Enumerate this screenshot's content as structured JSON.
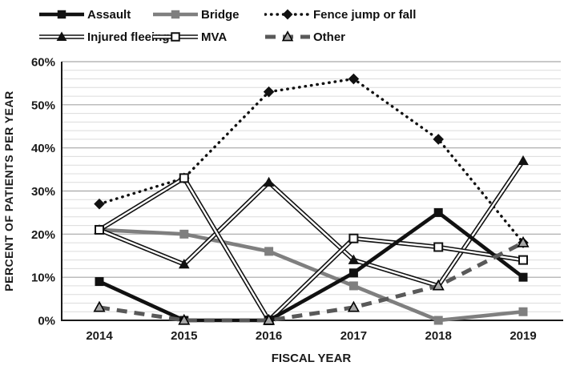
{
  "chart_data": {
    "type": "line",
    "title": "",
    "xlabel": "FISCAL YEAR",
    "ylabel": "PERCENT OF PATIENTS PER YEAR",
    "x": [
      "2014",
      "2015",
      "2016",
      "2017",
      "2018",
      "2019"
    ],
    "ylim": [
      0,
      60
    ],
    "yticks": [
      "0%",
      "10%",
      "20%",
      "30%",
      "40%",
      "50%",
      "60%"
    ],
    "grid": {
      "major_step": 10,
      "minor_step": 2,
      "major_color": "#a6a6a6",
      "minor_color": "#dcdcdc"
    },
    "legend_position": "top",
    "units": "percent of patients per year",
    "series": [
      {
        "name": "Assault",
        "values": [
          9,
          0,
          0,
          11,
          25,
          10
        ],
        "color": "#111111",
        "line": "solid-thick",
        "marker": "filled-square"
      },
      {
        "name": "Bridge",
        "values": [
          21,
          20,
          16,
          8,
          0,
          2
        ],
        "color": "#7f7f7f",
        "line": "solid-thick",
        "marker": "filled-square"
      },
      {
        "name": "Fence jump or fall",
        "values": [
          27,
          33,
          53,
          56,
          42,
          18
        ],
        "color": "#111111",
        "line": "dotted",
        "marker": "filled-diamond"
      },
      {
        "name": "Injured fleeing",
        "values": [
          21,
          13,
          32,
          14,
          8,
          37
        ],
        "color": "#111111",
        "line": "double",
        "marker": "filled-triangle"
      },
      {
        "name": "MVA",
        "values": [
          21,
          33,
          0,
          19,
          17,
          14
        ],
        "color": "#111111",
        "line": "double",
        "marker": "open-square"
      },
      {
        "name": "Other",
        "values": [
          3,
          0,
          0,
          3,
          8,
          18
        ],
        "color": "#595959",
        "line": "dashed",
        "marker": "gray-triangle",
        "marker_fill": "#a6a6a6"
      }
    ]
  }
}
